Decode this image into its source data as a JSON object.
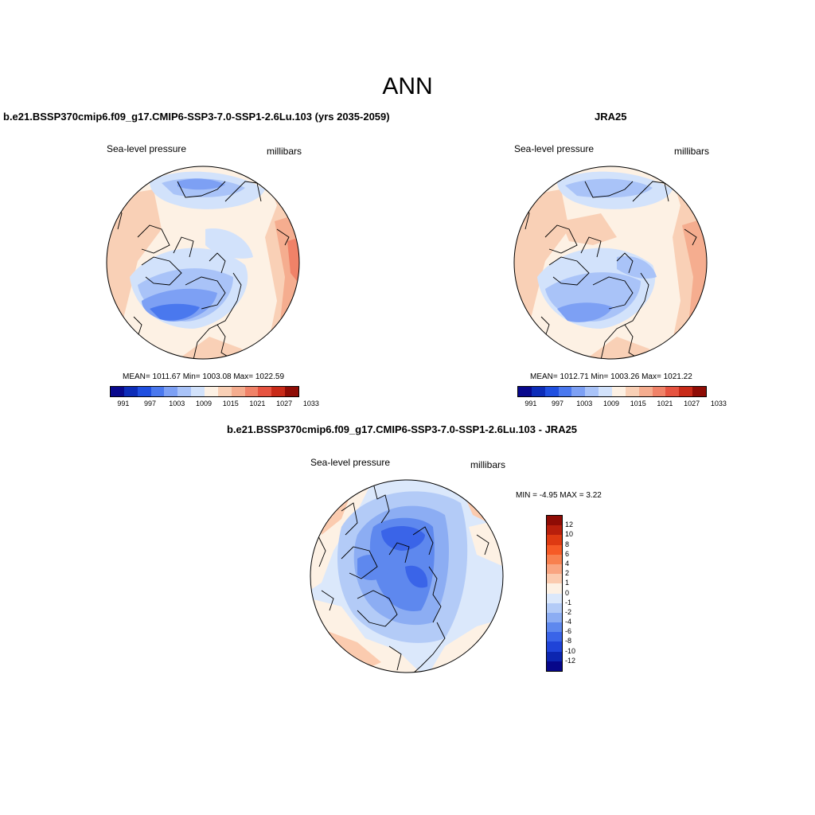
{
  "title": "ANN",
  "panels": {
    "model": {
      "header": "b.e21.BSSP370cmip6.f09_g17.CMIP6-SSP3-7.0-SSP1-2.6Lu.103 (yrs 2035-2059)",
      "variable": "Sea-level pressure",
      "units": "millibars",
      "stats": "MEAN= 1011.67  Min= 1003.08  Max= 1022.59"
    },
    "obs": {
      "header": "JRA25",
      "variable": "Sea-level pressure",
      "units": "millibars",
      "stats": "MEAN= 1012.71  Min= 1003.26  Max= 1021.22"
    },
    "diff": {
      "header": "b.e21.BSSP370cmip6.f09_g17.CMIP6-SSP3-7.0-SSP1-2.6Lu.103 - JRA25",
      "variable": "Sea-level pressure",
      "units": "millibars",
      "stats": "MIN =  -4.95 MAX =   3.22"
    }
  },
  "colorbar_abs": {
    "colors": [
      "#08088c",
      "#0c2cb8",
      "#1f4fe0",
      "#4a78ee",
      "#7da0f4",
      "#a9c3f8",
      "#d2e2fb",
      "#fdf1e4",
      "#f9d0b6",
      "#f5ad8f",
      "#f08268",
      "#e65340",
      "#c82a18",
      "#8f0c05"
    ],
    "tick_labels": [
      "991",
      "997",
      "1003",
      "1009",
      "1015",
      "1021",
      "1027",
      "1033"
    ]
  },
  "colorbar_diff": {
    "colors": [
      "#8f0c05",
      "#b81f0c",
      "#de3a12",
      "#f65a26",
      "#f8804f",
      "#f9a581",
      "#fbcbaf",
      "#fdf1e4",
      "#dbe8fb",
      "#b3cbf7",
      "#8cadf3",
      "#5e88ee",
      "#3a64e8",
      "#1f43d8",
      "#0c25b0",
      "#07078a"
    ],
    "tick_labels": [
      "12",
      "10",
      "8",
      "6",
      "4",
      "2",
      "1",
      "0",
      "-1",
      "-2",
      "-4",
      "-6",
      "-8",
      "-10",
      "-12"
    ]
  }
}
